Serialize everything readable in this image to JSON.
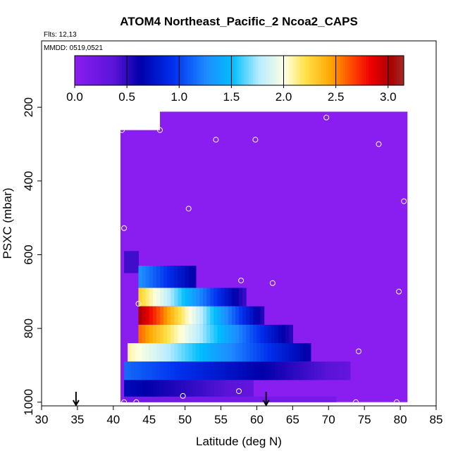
{
  "chart_data": {
    "type": "heatmap",
    "title": "ATOM4 Northeast_Pacific_2 Ncoa2_CAPS",
    "flights_label": "Flts: 12,13",
    "dates_label": "MMDD: 0519,0521",
    "xlabel": "Latitude (deg N)",
    "ylabel": "PSXC (mbar)",
    "xlim": [
      30,
      85
    ],
    "ylim": [
      1010,
      20
    ],
    "y_reversed": true,
    "x_ticks": [
      "30",
      "35",
      "40",
      "45",
      "50",
      "55",
      "60",
      "65",
      "70",
      "75",
      "80",
      "85"
    ],
    "y_ticks": [
      "200",
      "400",
      "600",
      "800",
      "1000"
    ],
    "colorbar": {
      "range": [
        0,
        3.15
      ],
      "ticks": [
        "0.0",
        "0.5",
        "1.0",
        "1.5",
        "2.0",
        "2.5",
        "3.0"
      ],
      "colors": [
        "#8a1df0",
        "#5a14d8",
        "#0000aa",
        "#0030ee",
        "#1e8cff",
        "#00bfff",
        "#b8ecff",
        "#ffffe0",
        "#ffe24a",
        "#ffa500",
        "#ff4a00",
        "#ee0000",
        "#aa0000",
        "#a52a2a"
      ],
      "color_stops": [
        0,
        0.12,
        0.2,
        0.3,
        0.4,
        0.48,
        0.56,
        0.64,
        0.7,
        0.78,
        0.84,
        0.9,
        0.96,
        1
      ]
    },
    "background_value": 0,
    "outline": [
      [
        41,
        262
      ],
      [
        46.5,
        262
      ],
      [
        46.5,
        212
      ],
      [
        81,
        212
      ],
      [
        81,
        1000
      ],
      [
        41,
        1000
      ]
    ],
    "cells": [
      {
        "lat0": 41.5,
        "lat1": 43.5,
        "p0": 590,
        "p1": 650,
        "start": 0.45,
        "end": 0.45
      },
      {
        "lat0": 43.5,
        "lat1": 51.5,
        "p0": 630,
        "p1": 690,
        "start": 1.3,
        "end": 0.6
      },
      {
        "lat0": 43.5,
        "lat1": 58.5,
        "p0": 690,
        "p1": 740,
        "start": 2.3,
        "end": 0.45
      },
      {
        "lat0": 43.5,
        "lat1": 61.0,
        "p0": 740,
        "p1": 790,
        "start": 3.05,
        "end": 0.5
      },
      {
        "lat0": 43.5,
        "lat1": 65.0,
        "p0": 790,
        "p1": 840,
        "start": 2.6,
        "end": 0.5
      },
      {
        "lat0": 42.0,
        "lat1": 67.5,
        "p0": 840,
        "p1": 890,
        "start": 2.1,
        "end": 0.6
      },
      {
        "lat0": 41.5,
        "lat1": 73.0,
        "p0": 890,
        "p1": 940,
        "start": 1.15,
        "end": 0.3
      },
      {
        "lat0": 41.5,
        "lat1": 59.5,
        "p0": 940,
        "p1": 985,
        "start": 0.7,
        "end": 0.3
      },
      {
        "lat0": 41.5,
        "lat1": 71.0,
        "p0": 985,
        "p1": 1000,
        "start": 0.15,
        "end": 0.15
      }
    ],
    "samples": [
      {
        "x": 41.2,
        "y": 262
      },
      {
        "x": 46.5,
        "y": 262
      },
      {
        "x": 54.3,
        "y": 288
      },
      {
        "x": 59.8,
        "y": 288
      },
      {
        "x": 69.7,
        "y": 228
      },
      {
        "x": 77.0,
        "y": 300
      },
      {
        "x": 80.5,
        "y": 455
      },
      {
        "x": 50.5,
        "y": 475
      },
      {
        "x": 41.5,
        "y": 528
      },
      {
        "x": 57.8,
        "y": 670
      },
      {
        "x": 62.2,
        "y": 677
      },
      {
        "x": 43.5,
        "y": 733
      },
      {
        "x": 79.8,
        "y": 700
      },
      {
        "x": 74.2,
        "y": 862
      },
      {
        "x": 57.5,
        "y": 970
      },
      {
        "x": 49.7,
        "y": 983
      },
      {
        "x": 41.5,
        "y": 1000
      },
      {
        "x": 43.2,
        "y": 1000
      },
      {
        "x": 73.8,
        "y": 1000
      },
      {
        "x": 79.5,
        "y": 1000
      }
    ],
    "flight_markers": [
      34.8,
      61.3
    ]
  }
}
